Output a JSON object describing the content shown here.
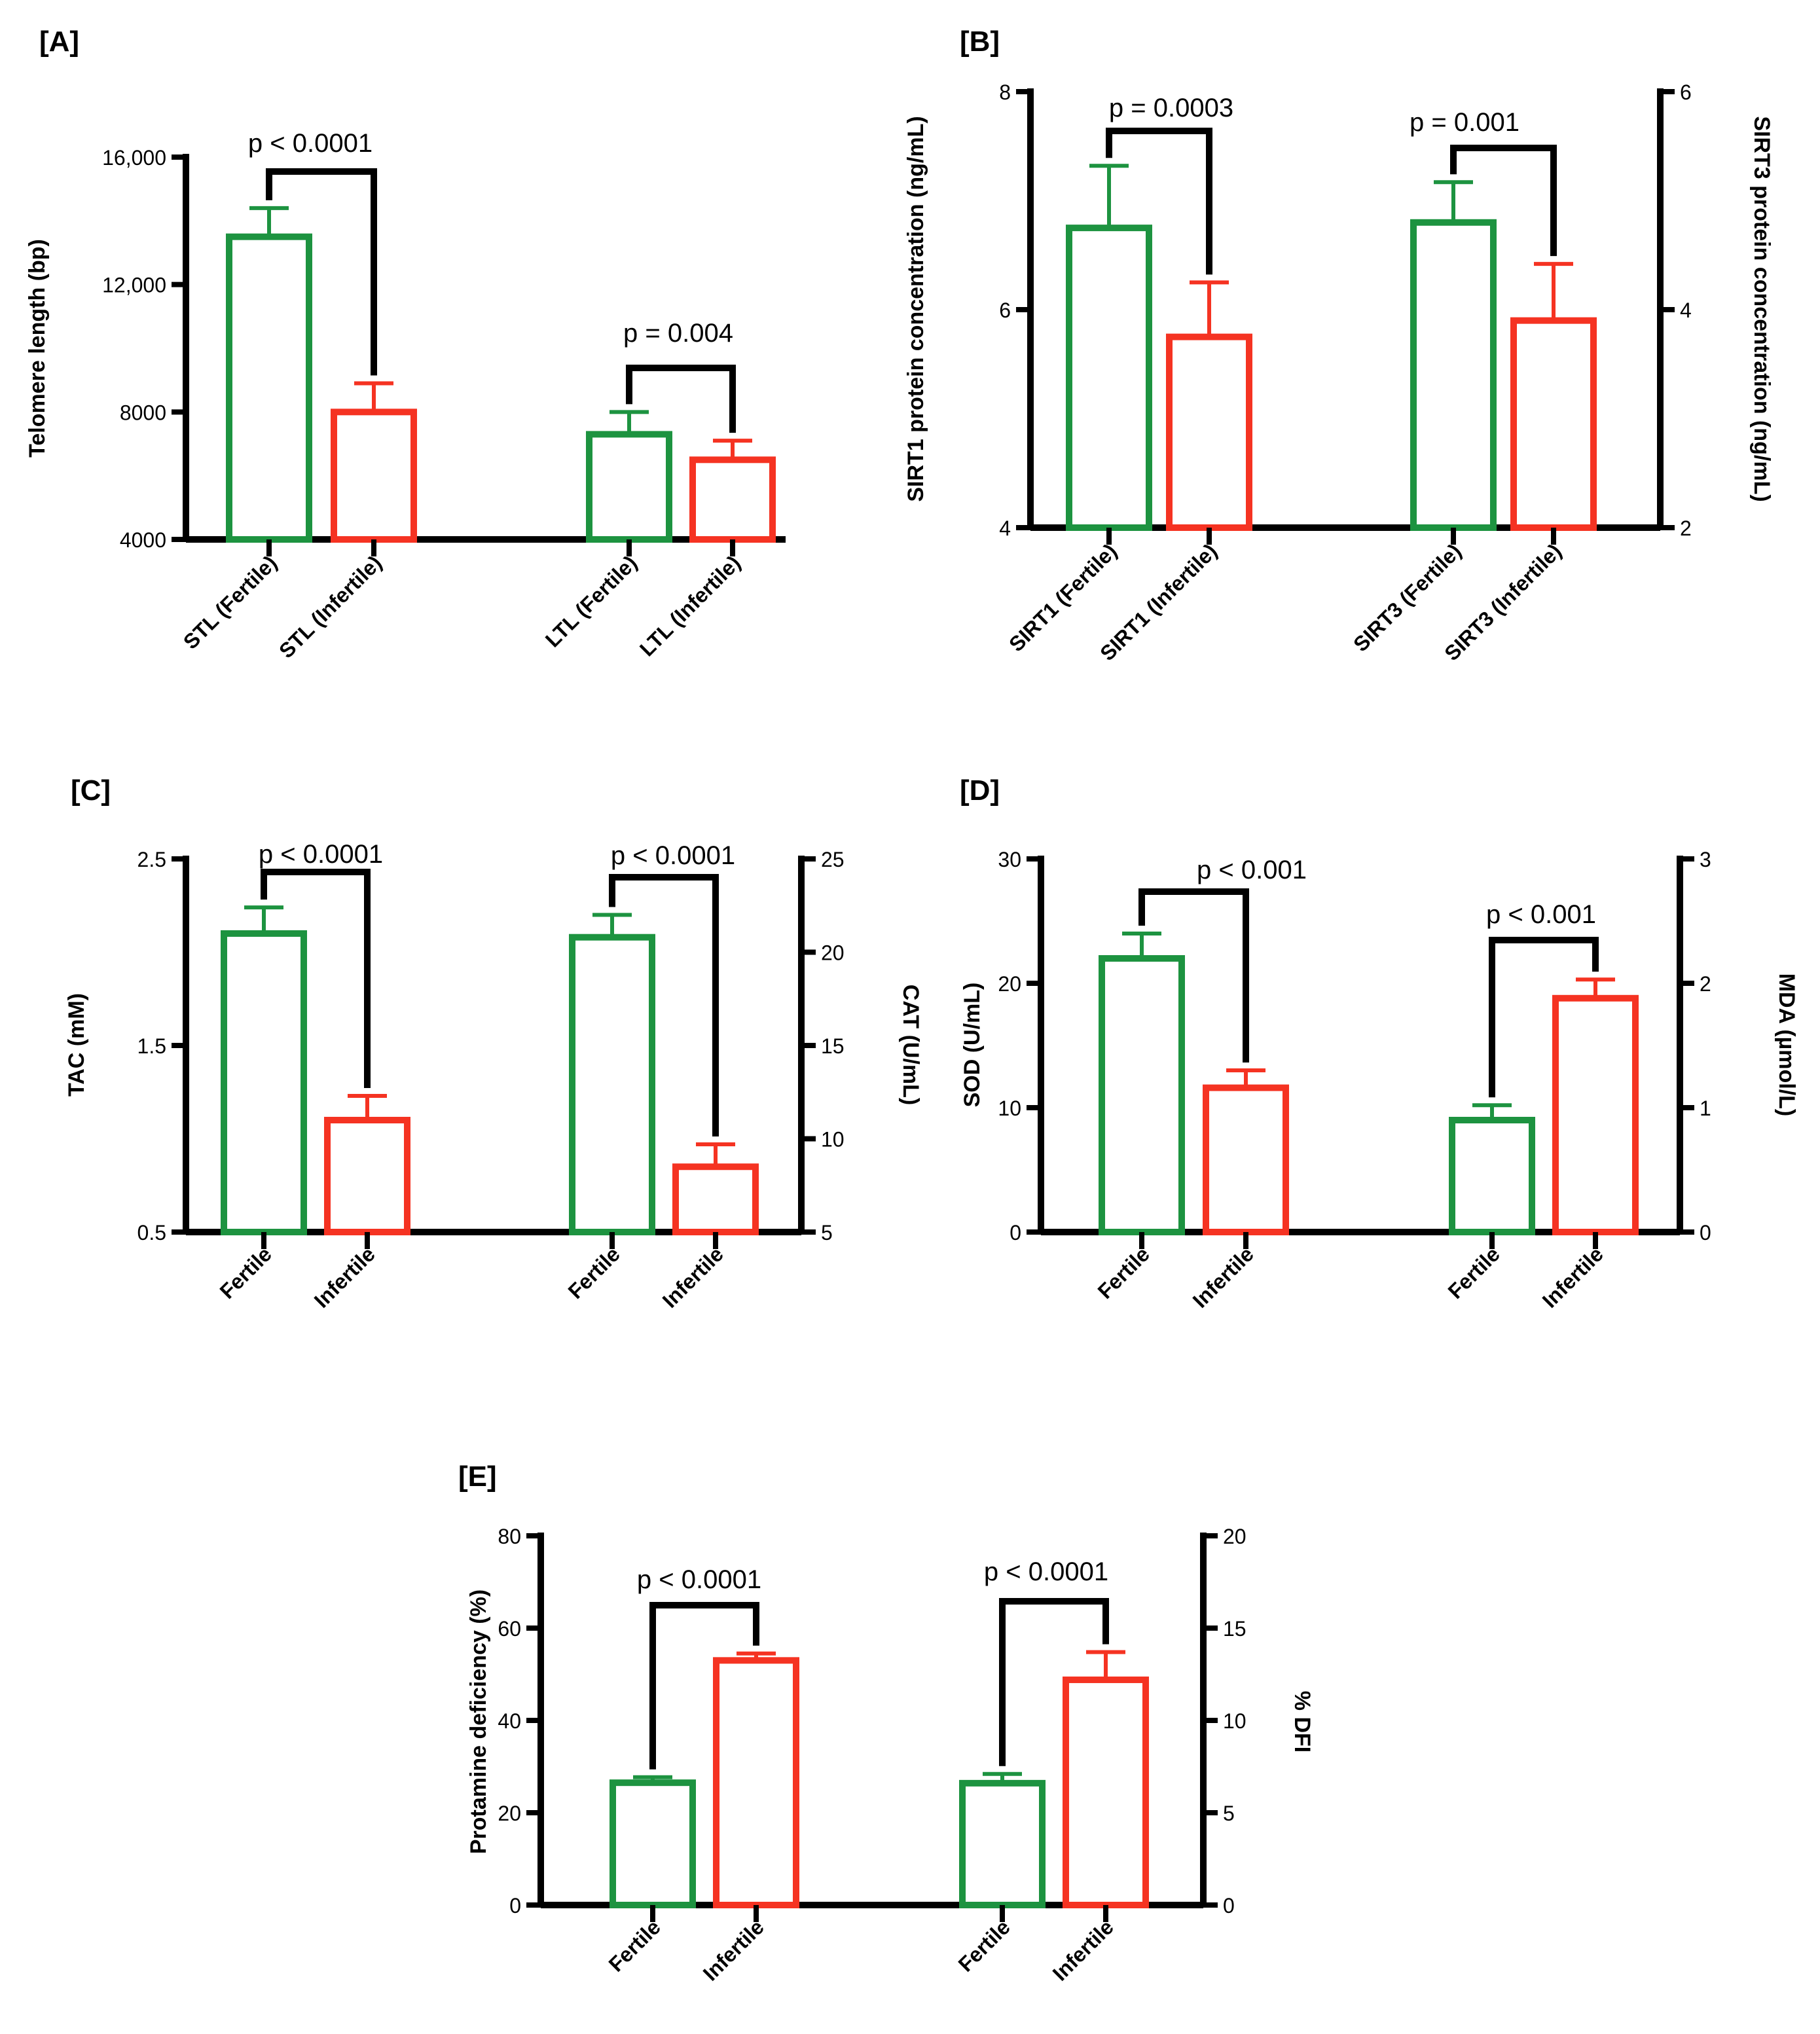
{
  "colors": {
    "fertile": "#1d9340",
    "infertile": "#f53322",
    "axis": "#000000"
  },
  "chart_data": [
    {
      "id": "A",
      "panel_label": "[A]",
      "type": "bar",
      "ylabel": "Telomere length (bp)",
      "y2label": "",
      "ylim": [
        4000,
        16000
      ],
      "yticks": [
        4000,
        8000,
        12000,
        16000
      ],
      "ytick_labels": [
        "4000",
        "8000",
        "12,000",
        "16,000"
      ],
      "categories": [
        "STL (Fertile)",
        "STL (Infertile)",
        "LTL (Fertile)",
        "LTL (Infertile)"
      ],
      "groups": [
        "fertile",
        "infertile",
        "fertile",
        "infertile"
      ],
      "values": [
        13500,
        8000,
        7300,
        6500
      ],
      "errors": [
        900,
        900,
        700,
        600
      ],
      "comparisons": [
        {
          "label": "p < 0.0001",
          "bars": [
            0,
            1
          ]
        },
        {
          "label": "p = 0.004",
          "bars": [
            2,
            3
          ]
        }
      ]
    },
    {
      "id": "B",
      "panel_label": "[B]",
      "type": "bar",
      "ylabel": "SIRT1 protein concentration (ng/mL)",
      "y2label": "SIRT3 protein concentration (ng/mL)",
      "ylim": [
        4,
        8
      ],
      "yticks": [
        4,
        6,
        8
      ],
      "ytick_labels": [
        "4",
        "6",
        "8"
      ],
      "y2lim": [
        2,
        6
      ],
      "y2ticks": [
        2,
        4,
        6
      ],
      "y2tick_labels": [
        "2",
        "4",
        "6"
      ],
      "categories": [
        "SIRT1 (Fertile)",
        "SIRT1 (Infertile)",
        "SIRT3 (Fertile)",
        "SIRT3 (Infertile)"
      ],
      "groups": [
        "fertile",
        "infertile",
        "fertile",
        "infertile"
      ],
      "axis_side": [
        "left",
        "left",
        "right",
        "right"
      ],
      "values": [
        6.75,
        5.75,
        4.8,
        3.9
      ],
      "errors": [
        0.57,
        0.5,
        0.37,
        0.52
      ],
      "comparisons": [
        {
          "label": "p = 0.0003",
          "bars": [
            0,
            1
          ]
        },
        {
          "label": "p = 0.001",
          "bars": [
            2,
            3
          ]
        }
      ]
    },
    {
      "id": "C",
      "panel_label": "[C]",
      "type": "bar",
      "ylabel": "TAC (mM)",
      "y2label": "CAT (U/mL)",
      "ylim": [
        0.5,
        2.5
      ],
      "yticks": [
        0.5,
        1.5,
        2.5
      ],
      "ytick_labels": [
        "0.5",
        "1.5",
        "2.5"
      ],
      "y2lim": [
        5,
        25
      ],
      "y2ticks": [
        5,
        10,
        15,
        20,
        25
      ],
      "y2tick_labels": [
        "5",
        "10",
        "15",
        "20",
        "25"
      ],
      "categories": [
        "Fertile",
        "Infertile",
        "Fertile",
        "Infertile"
      ],
      "groups": [
        "fertile",
        "infertile",
        "fertile",
        "infertile"
      ],
      "axis_side": [
        "left",
        "left",
        "right",
        "right"
      ],
      "values": [
        2.1,
        1.1,
        20.8,
        8.5
      ],
      "errors": [
        0.14,
        0.13,
        1.2,
        1.2
      ],
      "comparisons": [
        {
          "label": "p < 0.0001",
          "bars": [
            0,
            1
          ]
        },
        {
          "label": "p < 0.0001",
          "bars": [
            2,
            3
          ]
        }
      ]
    },
    {
      "id": "D",
      "panel_label": "[D]",
      "type": "bar",
      "ylabel": "SOD (U/mL)",
      "y2label": "MDA (µmol/L)",
      "ylim": [
        0,
        30
      ],
      "yticks": [
        0,
        10,
        20,
        30
      ],
      "ytick_labels": [
        "0",
        "10",
        "20",
        "30"
      ],
      "y2lim": [
        0,
        3
      ],
      "y2ticks": [
        0,
        1,
        2,
        3
      ],
      "y2tick_labels": [
        "0",
        "1",
        "2",
        "3"
      ],
      "categories": [
        "Fertile",
        "Infertile",
        "Fertile",
        "Infertile"
      ],
      "groups": [
        "fertile",
        "infertile",
        "fertile",
        "infertile"
      ],
      "axis_side": [
        "left",
        "left",
        "right",
        "right"
      ],
      "values": [
        22,
        11.6,
        0.9,
        1.88
      ],
      "errors": [
        2.0,
        1.4,
        0.12,
        0.15
      ],
      "comparisons": [
        {
          "label": "p < 0.001",
          "bars": [
            0,
            1
          ]
        },
        {
          "label": "p < 0.001",
          "bars": [
            2,
            3
          ]
        }
      ]
    },
    {
      "id": "E",
      "panel_label": "[E]",
      "type": "bar",
      "ylabel": "Protamine deficiency (%)",
      "y2label": "% DFI",
      "ylim": [
        0,
        80
      ],
      "yticks": [
        0,
        20,
        40,
        60,
        80
      ],
      "ytick_labels": [
        "0",
        "20",
        "40",
        "60",
        "80"
      ],
      "y2lim": [
        0,
        20
      ],
      "y2ticks": [
        0,
        5,
        10,
        15,
        20
      ],
      "y2tick_labels": [
        "0",
        "5",
        "10",
        "15",
        "20"
      ],
      "categories": [
        "Fertile",
        "Infertile",
        "Fertile",
        "Infertile"
      ],
      "groups": [
        "fertile",
        "infertile",
        "fertile",
        "infertile"
      ],
      "axis_side": [
        "left",
        "left",
        "right",
        "right"
      ],
      "values": [
        26.5,
        53,
        6.6,
        12.2
      ],
      "errors": [
        1.2,
        1.5,
        0.5,
        1.5
      ],
      "comparisons": [
        {
          "label": "p < 0.0001",
          "bars": [
            0,
            1
          ]
        },
        {
          "label": "p < 0.0001",
          "bars": [
            2,
            3
          ]
        }
      ]
    }
  ]
}
